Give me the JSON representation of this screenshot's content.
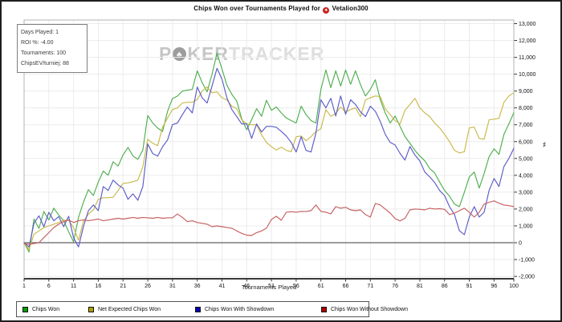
{
  "title": {
    "prefix": "Chips Won over Tournaments Played for",
    "player": "Vetalion300",
    "logo_icon": "pokertracker-spade",
    "logo_glyph": "♠",
    "logo_color": "#cc2222"
  },
  "stats_box": {
    "lines": [
      "Days Played: 1",
      "ROI %: -4.00",
      "Tournaments: 100",
      "ChipsEV/turniej: 88"
    ]
  },
  "watermark": {
    "part1": "P",
    "logo_glyph": "♠",
    "part2": "KER",
    "part3": "TRACKER"
  },
  "y_axis_symbol": "♯",
  "chart_data": {
    "type": "line",
    "title": "Chips Won over Tournaments Played for Vetalion300",
    "xlabel": "Tournaments Played",
    "x_range": [
      1,
      100
    ],
    "x_ticks": [
      1,
      6,
      11,
      16,
      21,
      26,
      31,
      36,
      41,
      46,
      51,
      56,
      61,
      66,
      71,
      76,
      81,
      86,
      91,
      96,
      100
    ],
    "ylim": [
      -2000,
      13000
    ],
    "y_tick_step": 1000,
    "grid": true,
    "legend_position": "bottom",
    "colors": {
      "gridline": "#ececec",
      "zero_line": "#606060",
      "axis_line": "#3a3a3a",
      "plot_border": "#b3b3b3",
      "tick": "#333333",
      "tick_label": "#111111"
    },
    "series": [
      {
        "name": "Chips Won",
        "color": "#4fae50",
        "legend_color": "#00a000",
        "values": [
          0,
          -550,
          1400,
          850,
          1850,
          1350,
          2050,
          1650,
          1300,
          650,
          50,
          1500,
          2400,
          3150,
          2800,
          3600,
          4250,
          4000,
          4800,
          4550,
          5200,
          5650,
          5150,
          4950,
          5500,
          7550,
          7100,
          6800,
          6600,
          7800,
          8550,
          8700,
          9000,
          9050,
          9100,
          10200,
          9500,
          8950,
          10000,
          11250,
          10300,
          9350,
          8800,
          8400,
          7350,
          6700,
          7300,
          7950,
          7500,
          8450,
          7850,
          8050,
          7700,
          7400,
          7250,
          7100,
          8100,
          7600,
          7250,
          7100,
          9100,
          10250,
          9200,
          10200,
          9300,
          10250,
          9400,
          10200,
          9380,
          8710,
          9100,
          9670,
          8500,
          7700,
          7100,
          7520,
          6900,
          6300,
          5900,
          5480,
          5150,
          4860,
          4400,
          4140,
          3600,
          3100,
          2760,
          2290,
          2140,
          3000,
          3900,
          4190,
          3240,
          4100,
          5100,
          5570,
          5240,
          6430,
          7050,
          7710
        ]
      },
      {
        "name": "Net Expected Chips Won",
        "color": "#c9b94b",
        "legend_color": "#b0a000",
        "values": [
          0,
          -400,
          500,
          700,
          900,
          1000,
          1100,
          1200,
          1330,
          1330,
          900,
          150,
          1250,
          1700,
          1950,
          2570,
          2670,
          2670,
          2700,
          3100,
          3520,
          3550,
          3620,
          3710,
          4500,
          6140,
          5900,
          5760,
          6860,
          7400,
          7900,
          8000,
          8290,
          8330,
          8330,
          8500,
          9000,
          9240,
          8900,
          8950,
          8600,
          8480,
          8100,
          7950,
          7290,
          7050,
          7000,
          7000,
          6400,
          5950,
          5700,
          5500,
          5670,
          5480,
          5400,
          6290,
          6330,
          6050,
          6290,
          6600,
          6760,
          7900,
          7500,
          7670,
          8050,
          7760,
          7900,
          8000,
          7480,
          8480,
          8600,
          8710,
          8670,
          7950,
          7600,
          7240,
          7050,
          7860,
          8200,
          8570,
          8000,
          7700,
          7480,
          7100,
          6810,
          6430,
          6000,
          5480,
          5330,
          5400,
          6810,
          6860,
          6190,
          6140,
          7290,
          7330,
          7380,
          8330,
          8710,
          8900
        ]
      },
      {
        "name": "Chips Won With Showdown",
        "color": "#5b5bc9",
        "legend_color": "#0000b0",
        "values": [
          0,
          -250,
          1150,
          1600,
          950,
          1800,
          1300,
          1550,
          950,
          1570,
          300,
          -250,
          950,
          1900,
          2240,
          1900,
          3330,
          3100,
          3710,
          3430,
          3240,
          2570,
          2900,
          2520,
          3330,
          5860,
          5290,
          5140,
          5700,
          6100,
          7000,
          7100,
          7600,
          8050,
          7700,
          9240,
          8600,
          8290,
          9300,
          10350,
          9700,
          8600,
          7900,
          7480,
          7050,
          7050,
          6190,
          7050,
          6570,
          6900,
          6900,
          6850,
          6600,
          6330,
          5950,
          5380,
          6290,
          5480,
          5380,
          6500,
          8480,
          8000,
          8570,
          7520,
          8710,
          7620,
          8480,
          8200,
          7760,
          7480,
          8100,
          7800,
          7200,
          6430,
          5950,
          5800,
          5300,
          4900,
          5710,
          5200,
          4860,
          4190,
          3900,
          3570,
          3100,
          2800,
          2140,
          1670,
          710,
          480,
          1520,
          2140,
          1520,
          1810,
          3100,
          3810,
          3330,
          4520,
          5000,
          5600
        ]
      },
      {
        "name": "Chips Won Without Showdown",
        "color": "#c75f5f",
        "legend_color": "#b00000",
        "values": [
          -50,
          -100,
          -50,
          0,
          300,
          600,
          900,
          1100,
          1250,
          1350,
          1200,
          1300,
          1350,
          1300,
          1350,
          1400,
          1300,
          1350,
          1400,
          1450,
          1400,
          1450,
          1500,
          1450,
          1500,
          1480,
          1450,
          1500,
          1450,
          1480,
          1480,
          1700,
          1500,
          1250,
          1300,
          1200,
          1150,
          1100,
          950,
          1000,
          950,
          900,
          860,
          700,
          550,
          450,
          430,
          600,
          700,
          860,
          1380,
          1570,
          1330,
          1810,
          1840,
          1810,
          1860,
          1850,
          1900,
          2240,
          1860,
          1810,
          1710,
          2140,
          2050,
          2100,
          1950,
          1900,
          1950,
          1670,
          1520,
          2330,
          2240,
          2000,
          1760,
          1430,
          1290,
          1450,
          1950,
          2000,
          1980,
          1950,
          2050,
          2000,
          2020,
          1980,
          1670,
          1760,
          1900,
          2050,
          1800,
          1520,
          1810,
          2290,
          2400,
          2480,
          2350,
          2240,
          2200,
          2140
        ]
      }
    ]
  }
}
